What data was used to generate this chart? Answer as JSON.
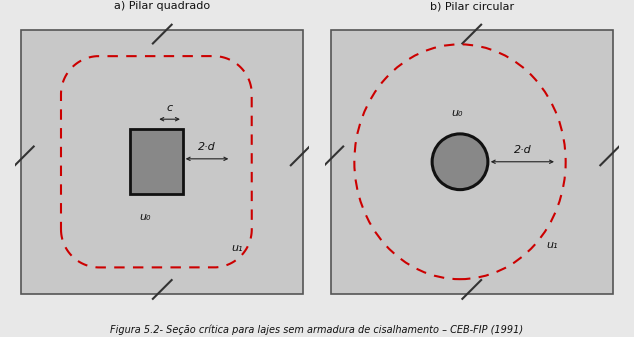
{
  "bg_color": "#c8c8c8",
  "dashed_color": "#cc0000",
  "pillar_fill": "#888888",
  "pillar_edge": "#111111",
  "arrow_color": "#222222",
  "label_color": "#111111",
  "subtitle_left": "a) Pilar quadrado",
  "subtitle_right": "b) Pilar circular",
  "caption": "Figura 5.2- Seção crítica para lajes sem armadura de cisalhamento – CEB-FIP (1991)",
  "u0_label": "u₀",
  "u1_label": "u₁",
  "two_d_label": "2·d",
  "c_label": "c",
  "font_size_labels": 8,
  "font_size_caption": 7,
  "font_size_subtitles": 8,
  "tick_color": "#333333",
  "tick_lw": 1.5,
  "tick_size": 0.032,
  "panel_edge_color": "#555555",
  "panel_lw": 1.2
}
